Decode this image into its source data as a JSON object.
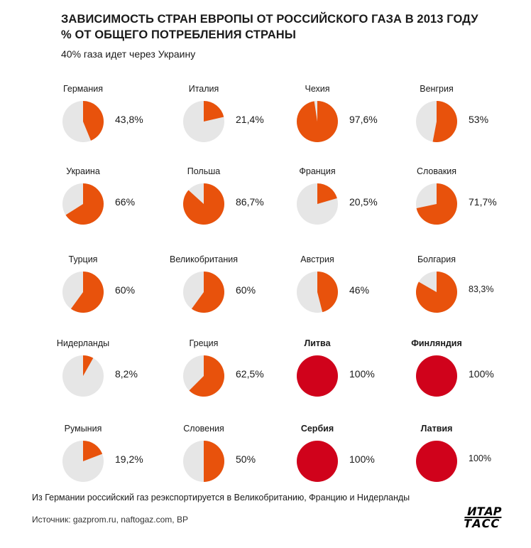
{
  "title_line1": "ЗАВИСИМОСТЬ СТРАН ЕВРОПЫ ОТ РОССИЙСКОГО ГАЗА В 2013 ГОДУ",
  "title_line2": "% ОТ ОБЩЕГО ПОТРЕБЛЕНИЯ СТРАНЫ",
  "subtitle": "40% газа идет через Украину",
  "note": "Из Германии российский газ реэкспортируется в Великобританию, Францию и Нидерланды",
  "source": "Источник: gazprom.ru, naftogaz.com, BP",
  "logo": {
    "line1": "ИТАР",
    "line2": "ТАСС"
  },
  "colors": {
    "share": "#e8520c",
    "full": "#d0021b",
    "rest": "#e6e6e6"
  },
  "chart_data": {
    "type": "pie",
    "title": "ЗАВИСИМОСТЬ СТРАН ЕВРОПЫ ОТ РОССИЙСКОГО ГАЗА В 2013 ГОДУ",
    "subtitle": "% ОТ ОБЩЕГО ПОТРЕБЛЕНИЯ СТРАНЫ",
    "countries": [
      {
        "name": "Германия",
        "value": 43.8,
        "label": "43,8%"
      },
      {
        "name": "Италия",
        "value": 21.4,
        "label": "21,4%"
      },
      {
        "name": "Чехия",
        "value": 97.6,
        "label": "97,6%"
      },
      {
        "name": "Венгрия",
        "value": 53,
        "label": "53%"
      },
      {
        "name": "Украина",
        "value": 66,
        "label": "66%"
      },
      {
        "name": "Польша",
        "value": 86.7,
        "label": "86,7%"
      },
      {
        "name": "Франция",
        "value": 20.5,
        "label": "20,5%"
      },
      {
        "name": "Словакия",
        "value": 71.7,
        "label": "71,7%"
      },
      {
        "name": "Турция",
        "value": 60,
        "label": "60%"
      },
      {
        "name": "Великобритания",
        "value": 60,
        "label": "60%"
      },
      {
        "name": "Австрия",
        "value": 46,
        "label": "46%"
      },
      {
        "name": "Болгария",
        "value": 83.3,
        "label": "83,3%"
      },
      {
        "name": "Нидерланды",
        "value": 8.2,
        "label": "8,2%"
      },
      {
        "name": "Греция",
        "value": 62.5,
        "label": "62,5%"
      },
      {
        "name": "Литва",
        "value": 100,
        "label": "100%"
      },
      {
        "name": "Финляндия",
        "value": 100,
        "label": "100%"
      },
      {
        "name": "Румыния",
        "value": 19.2,
        "label": "19,2%"
      },
      {
        "name": "Словения",
        "value": 50,
        "label": "50%"
      },
      {
        "name": "Сербия",
        "value": 100,
        "label": "100%"
      },
      {
        "name": "Латвия",
        "value": 100,
        "label": "100%"
      }
    ]
  }
}
